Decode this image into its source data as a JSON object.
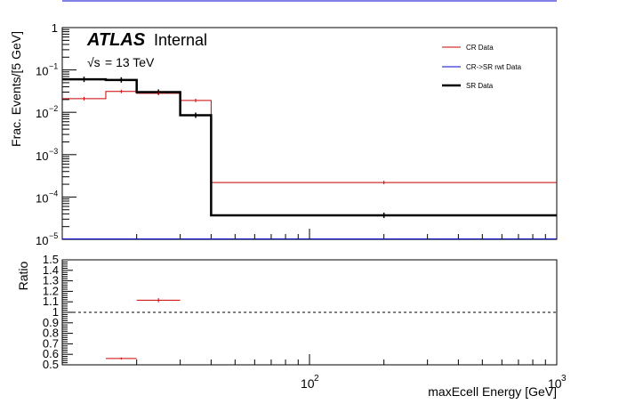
{
  "chart_data": [
    {
      "type": "line",
      "drawstyle": "steps",
      "scale": {
        "x": "log",
        "y": "log"
      },
      "xlim": [
        10,
        1000
      ],
      "ylim": [
        1e-05,
        1
      ],
      "ylabel": "Frac. Events/[5 GeV]",
      "y_ticks": [
        {
          "value": 1,
          "base": "1",
          "exp": ""
        },
        {
          "value": 0.1,
          "base": "10",
          "exp": "−1"
        },
        {
          "value": 0.01,
          "base": "10",
          "exp": "−2"
        },
        {
          "value": 0.001,
          "base": "10",
          "exp": "−3"
        },
        {
          "value": 0.0001,
          "base": "10",
          "exp": "−4"
        },
        {
          "value": 1e-05,
          "base": "10",
          "exp": "−5"
        }
      ],
      "annotations": {
        "experiment": "ATLAS",
        "status": "Internal",
        "energy_sqrt": "√s",
        "energy_value": "= 13 TeV"
      },
      "legend_position": "top-right",
      "bin_edges": [
        10,
        15,
        20,
        30,
        40,
        1000
      ],
      "series": [
        {
          "name": "CR Data",
          "color": "#cc0000",
          "line_width": 1,
          "values": [
            0.021,
            0.031,
            0.028,
            0.019,
            0.00022
          ]
        },
        {
          "name": "CR->SR rwt Data",
          "color": "#0000cc",
          "line_width": 1,
          "values": [
            1e-05,
            1e-05,
            1e-05,
            1e-05,
            1e-05
          ]
        },
        {
          "name": "SR Data",
          "color": "#000000",
          "line_width": 2.5,
          "values": [
            0.06,
            0.058,
            0.03,
            0.0085,
            3.7e-05
          ]
        }
      ]
    },
    {
      "type": "scatter",
      "scale": {
        "x": "log",
        "y": "linear"
      },
      "xlim": [
        10,
        1000
      ],
      "ylim": [
        0.5,
        1.5
      ],
      "ylabel": "Ratio",
      "xlabel": "maxEcell Energy [GeV]",
      "reference_line": 1,
      "y_ticks": [
        "0.5",
        "0.6",
        "0.7",
        "0.8",
        "0.9",
        "1",
        "1.1",
        "1.2",
        "1.3",
        "1.4",
        "1.5"
      ],
      "x_ticks": [
        {
          "value": 100,
          "base": "10",
          "exp": "2"
        },
        {
          "value": 1000,
          "base": "10",
          "exp": "3"
        }
      ],
      "points": [
        {
          "x": 17.5,
          "xerr": [
            15,
            20
          ],
          "y": 0.56,
          "yerr": 0.01,
          "color": "#cc0000"
        },
        {
          "x": 25,
          "xerr": [
            20,
            30
          ],
          "y": 1.115,
          "yerr": 0.02,
          "color": "#cc0000"
        }
      ]
    }
  ]
}
